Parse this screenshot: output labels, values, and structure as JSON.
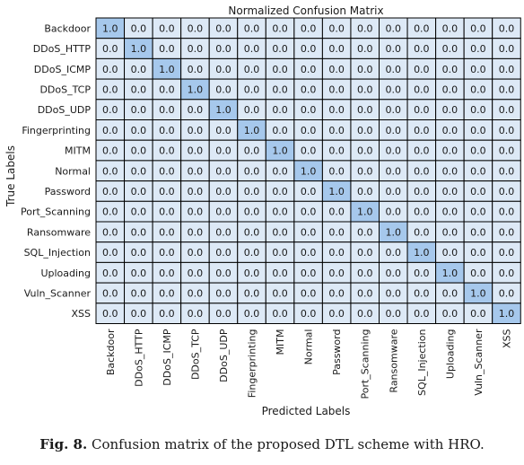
{
  "chart_data": {
    "type": "heatmap",
    "title": "Normalized Confusion Matrix",
    "xlabel": "Predicted Labels",
    "ylabel": "True Labels",
    "labels": [
      "Backdoor",
      "DDoS_HTTP",
      "DDoS_ICMP",
      "DDoS_TCP",
      "DDoS_UDP",
      "Fingerprinting",
      "MITM",
      "Normal",
      "Password",
      "Port_Scanning",
      "Ransomware",
      "SQL_Injection",
      "Uploading",
      "Vuln_Scanner",
      "XSS"
    ],
    "matrix": [
      [
        1.0,
        0.0,
        0.0,
        0.0,
        0.0,
        0.0,
        0.0,
        0.0,
        0.0,
        0.0,
        0.0,
        0.0,
        0.0,
        0.0,
        0.0
      ],
      [
        0.0,
        1.0,
        0.0,
        0.0,
        0.0,
        0.0,
        0.0,
        0.0,
        0.0,
        0.0,
        0.0,
        0.0,
        0.0,
        0.0,
        0.0
      ],
      [
        0.0,
        0.0,
        1.0,
        0.0,
        0.0,
        0.0,
        0.0,
        0.0,
        0.0,
        0.0,
        0.0,
        0.0,
        0.0,
        0.0,
        0.0
      ],
      [
        0.0,
        0.0,
        0.0,
        1.0,
        0.0,
        0.0,
        0.0,
        0.0,
        0.0,
        0.0,
        0.0,
        0.0,
        0.0,
        0.0,
        0.0
      ],
      [
        0.0,
        0.0,
        0.0,
        0.0,
        1.0,
        0.0,
        0.0,
        0.0,
        0.0,
        0.0,
        0.0,
        0.0,
        0.0,
        0.0,
        0.0
      ],
      [
        0.0,
        0.0,
        0.0,
        0.0,
        0.0,
        1.0,
        0.0,
        0.0,
        0.0,
        0.0,
        0.0,
        0.0,
        0.0,
        0.0,
        0.0
      ],
      [
        0.0,
        0.0,
        0.0,
        0.0,
        0.0,
        0.0,
        1.0,
        0.0,
        0.0,
        0.0,
        0.0,
        0.0,
        0.0,
        0.0,
        0.0
      ],
      [
        0.0,
        0.0,
        0.0,
        0.0,
        0.0,
        0.0,
        0.0,
        1.0,
        0.0,
        0.0,
        0.0,
        0.0,
        0.0,
        0.0,
        0.0
      ],
      [
        0.0,
        0.0,
        0.0,
        0.0,
        0.0,
        0.0,
        0.0,
        0.0,
        1.0,
        0.0,
        0.0,
        0.0,
        0.0,
        0.0,
        0.0
      ],
      [
        0.0,
        0.0,
        0.0,
        0.0,
        0.0,
        0.0,
        0.0,
        0.0,
        0.0,
        1.0,
        0.0,
        0.0,
        0.0,
        0.0,
        0.0
      ],
      [
        0.0,
        0.0,
        0.0,
        0.0,
        0.0,
        0.0,
        0.0,
        0.0,
        0.0,
        0.0,
        1.0,
        0.0,
        0.0,
        0.0,
        0.0
      ],
      [
        0.0,
        0.0,
        0.0,
        0.0,
        0.0,
        0.0,
        0.0,
        0.0,
        0.0,
        0.0,
        0.0,
        1.0,
        0.0,
        0.0,
        0.0
      ],
      [
        0.0,
        0.0,
        0.0,
        0.0,
        0.0,
        0.0,
        0.0,
        0.0,
        0.0,
        0.0,
        0.0,
        0.0,
        1.0,
        0.0,
        0.0
      ],
      [
        0.0,
        0.0,
        0.0,
        0.0,
        0.0,
        0.0,
        0.0,
        0.0,
        0.0,
        0.0,
        0.0,
        0.0,
        0.0,
        1.0,
        0.0
      ],
      [
        0.0,
        0.0,
        0.0,
        0.0,
        0.0,
        0.0,
        0.0,
        0.0,
        0.0,
        0.0,
        0.0,
        0.0,
        0.0,
        0.0,
        1.0
      ]
    ],
    "colors": {
      "high": "#a6c8ec",
      "low": "#dde9f6",
      "border": "#000000"
    },
    "grid": true
  },
  "caption": {
    "label": "Fig. 8.",
    "text": "Confusion matrix of the proposed DTL scheme with HRO."
  }
}
